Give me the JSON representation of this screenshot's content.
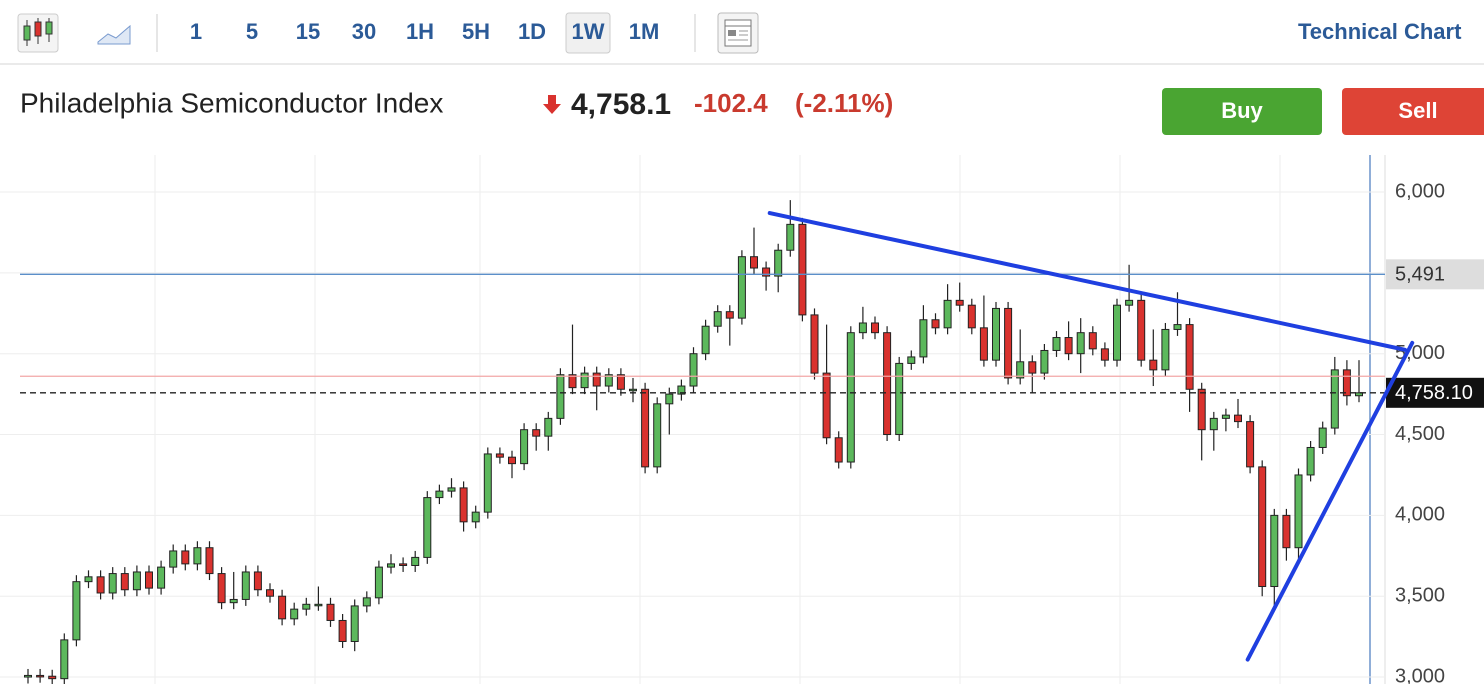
{
  "toolbar": {
    "intervals": [
      "1",
      "5",
      "15",
      "30",
      "1H",
      "5H",
      "1D",
      "1W",
      "1M"
    ],
    "active": 7,
    "link": "Technical Chart"
  },
  "header": {
    "title": "Philadelphia Semiconductor Index",
    "price": "4,758.1",
    "change": "-102.4",
    "change_pct": "(-2.11%)"
  },
  "buttons": {
    "buy": "Buy",
    "sell": "Sell"
  },
  "chart_data": {
    "type": "candlestick",
    "up_color": "#5cb85c",
    "down_color": "#d9322e",
    "ylim": [
      2957,
      6229
    ],
    "yticks": [
      {
        "value": 3000,
        "label": "3,000"
      },
      {
        "value": 3500,
        "label": "3,500"
      },
      {
        "value": 4000,
        "label": "4,000"
      },
      {
        "value": 4500,
        "label": "4,500"
      },
      {
        "value": 5000,
        "label": "5,000"
      },
      {
        "value": 5500,
        "label": "5,500"
      },
      {
        "value": 6000,
        "label": "6,000"
      }
    ],
    "grid": true,
    "open": [
      3000,
      3010,
      3005,
      2990,
      3230,
      3590,
      3620,
      3520,
      3640,
      3540,
      3650,
      3550,
      3680,
      3780,
      3700,
      3800,
      3640,
      3460,
      3480,
      3650,
      3540,
      3500,
      3360,
      3420,
      3450,
      3450,
      3350,
      3220,
      3440,
      3490,
      3680,
      3700,
      3690,
      3740,
      4110,
      4150,
      4170,
      3960,
      4020,
      4380,
      4360,
      4320,
      4530,
      4490,
      4600,
      4870,
      4790,
      4880,
      4800,
      4870,
      4780,
      4780,
      4300,
      4690,
      4750,
      4800,
      5000,
      5170,
      5260,
      5220,
      5600,
      5530,
      5480,
      5640,
      5800,
      5240,
      4880,
      4480,
      4330,
      5130,
      5190,
      5130,
      4500,
      4940,
      4980,
      5210,
      5160,
      5330,
      5300,
      5160,
      4960,
      5280,
      4850,
      4950,
      4880,
      5020,
      5100,
      5000,
      5130,
      5030,
      4960,
      5300,
      5330,
      4960,
      4900,
      5150,
      5180,
      4780,
      4530,
      4600,
      4620,
      4580,
      4300,
      3560,
      4000,
      3800,
      4250,
      4420,
      4540,
      4900,
      4740
    ],
    "close": [
      3010,
      3005,
      2990,
      3230,
      3590,
      3620,
      3520,
      3640,
      3540,
      3650,
      3550,
      3680,
      3780,
      3700,
      3800,
      3640,
      3460,
      3480,
      3650,
      3540,
      3500,
      3360,
      3420,
      3450,
      3450,
      3350,
      3220,
      3440,
      3490,
      3680,
      3700,
      3690,
      3740,
      4110,
      4150,
      4170,
      3960,
      4020,
      4380,
      4360,
      4320,
      4530,
      4490,
      4600,
      4870,
      4790,
      4880,
      4800,
      4870,
      4780,
      4780,
      4300,
      4690,
      4750,
      4800,
      5000,
      5170,
      5260,
      5220,
      5600,
      5530,
      5480,
      5640,
      5800,
      5240,
      4880,
      4480,
      4330,
      5130,
      5190,
      5130,
      4500,
      4940,
      4980,
      5210,
      5160,
      5330,
      5300,
      5160,
      4960,
      5280,
      4850,
      4950,
      4880,
      5020,
      5100,
      5000,
      5130,
      5030,
      4960,
      5300,
      5330,
      4960,
      4900,
      5150,
      5180,
      4780,
      4530,
      4600,
      4620,
      4580,
      4300,
      3560,
      4000,
      3800,
      4250,
      4420,
      4540,
      4900,
      4740,
      4758.1
    ],
    "high": [
      3050,
      3050,
      3045,
      3270,
      3630,
      3660,
      3660,
      3680,
      3680,
      3690,
      3690,
      3720,
      3820,
      3820,
      3840,
      3840,
      3680,
      3650,
      3690,
      3690,
      3580,
      3540,
      3460,
      3490,
      3560,
      3490,
      3390,
      3480,
      3530,
      3720,
      3760,
      3740,
      3780,
      4150,
      4190,
      4230,
      4210,
      4060,
      4420,
      4420,
      4400,
      4570,
      4570,
      4640,
      4910,
      5180,
      4920,
      4920,
      4910,
      4910,
      4850,
      4820,
      4730,
      4790,
      4840,
      5040,
      5210,
      5300,
      5300,
      5640,
      5780,
      5570,
      5680,
      5950,
      5840,
      5280,
      5180,
      4520,
      5170,
      5290,
      5230,
      5170,
      4980,
      5020,
      5300,
      5250,
      5430,
      5440,
      5340,
      5360,
      5320,
      5320,
      5150,
      4990,
      5060,
      5140,
      5200,
      5220,
      5170,
      5070,
      5340,
      5550,
      5370,
      5150,
      5190,
      5380,
      5220,
      4820,
      4640,
      4660,
      4720,
      4620,
      4340,
      4040,
      4040,
      4290,
      4460,
      4580,
      4980,
      4960,
      4960
    ],
    "low": [
      2960,
      2965,
      2950,
      2950,
      3190,
      3550,
      3480,
      3480,
      3500,
      3500,
      3510,
      3510,
      3640,
      3660,
      3660,
      3600,
      3420,
      3420,
      3440,
      3500,
      3460,
      3320,
      3320,
      3380,
      3410,
      3310,
      3180,
      3160,
      3400,
      3450,
      3640,
      3650,
      3650,
      3700,
      4070,
      4110,
      3900,
      3920,
      3980,
      4320,
      4230,
      4280,
      4400,
      4400,
      4560,
      4750,
      4750,
      4650,
      4760,
      4740,
      4700,
      4260,
      4260,
      4500,
      4710,
      4760,
      4960,
      5130,
      5050,
      5180,
      5490,
      5390,
      5380,
      5600,
      5200,
      4840,
      4440,
      4290,
      4290,
      5090,
      5090,
      4460,
      4460,
      4900,
      4940,
      5120,
      5120,
      5260,
      5120,
      4920,
      4920,
      4810,
      4810,
      4760,
      4840,
      4980,
      4960,
      4880,
      4990,
      4920,
      4920,
      5260,
      4920,
      4800,
      4860,
      5110,
      4640,
      4340,
      4400,
      4520,
      4540,
      4260,
      3500,
      3420,
      3720,
      3700,
      4210,
      4380,
      4500,
      4680,
      4700
    ],
    "price_lines": [
      {
        "value": 5491,
        "label": "5,491",
        "color": "#5b8fc9"
      },
      {
        "value": 4860.5,
        "color": "#f2a7a7"
      },
      {
        "value": 4758.1,
        "label": "4,758.10",
        "color": "#222222"
      }
    ],
    "trendlines": [
      {
        "x": [
          61.3,
          113.8
        ],
        "y": [
          5870,
          5024
        ],
        "color": "#1f3fe0"
      },
      {
        "x": [
          100.8,
          114.4
        ],
        "y": [
          3108,
          5067
        ],
        "color": "#1f3fe0"
      }
    ]
  }
}
